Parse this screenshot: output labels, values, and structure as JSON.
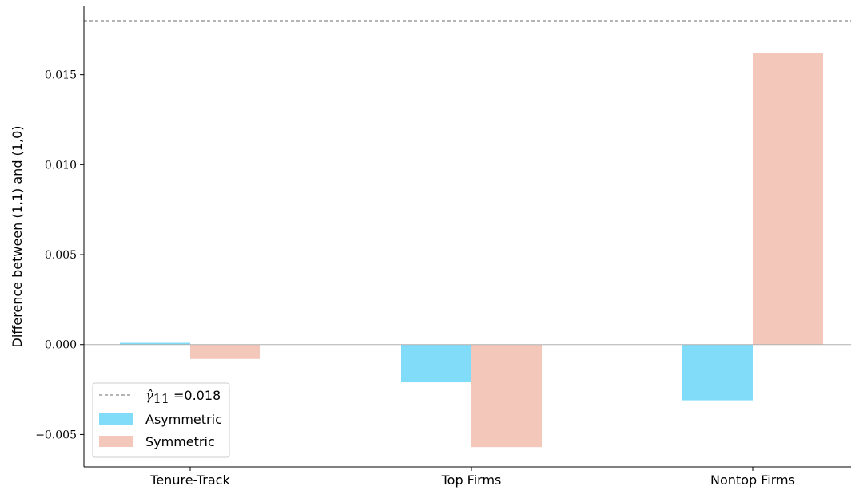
{
  "chart_data": {
    "type": "bar",
    "categories": [
      "Tenure-Track",
      "Top Firms",
      "Nontop Firms"
    ],
    "series": [
      {
        "name": "Asymmetric",
        "values": [
          0.0001,
          -0.0021,
          -0.0031
        ],
        "color": "#81dcfa"
      },
      {
        "name": "Symmetric",
        "values": [
          -0.0008,
          -0.0057,
          0.0162
        ],
        "color": "#f4c7bb"
      }
    ],
    "reference_line": {
      "value": 0.018,
      "label_symbol": "γ̂",
      "label_subscript": "11",
      "label_value": " =0.018",
      "color": "#888888",
      "style": "dashed"
    },
    "ylabel": "Difference between (1,1) and (1,0)",
    "yticks": [
      -0.005,
      0.0,
      0.005,
      0.01,
      0.015
    ],
    "ytick_labels": [
      "−0.005",
      "0.000",
      "0.005",
      "0.010",
      "0.015"
    ],
    "ylim": [
      -0.0068,
      0.0188
    ],
    "zero_line": true,
    "grid": false,
    "legend_position": "lower-left"
  }
}
